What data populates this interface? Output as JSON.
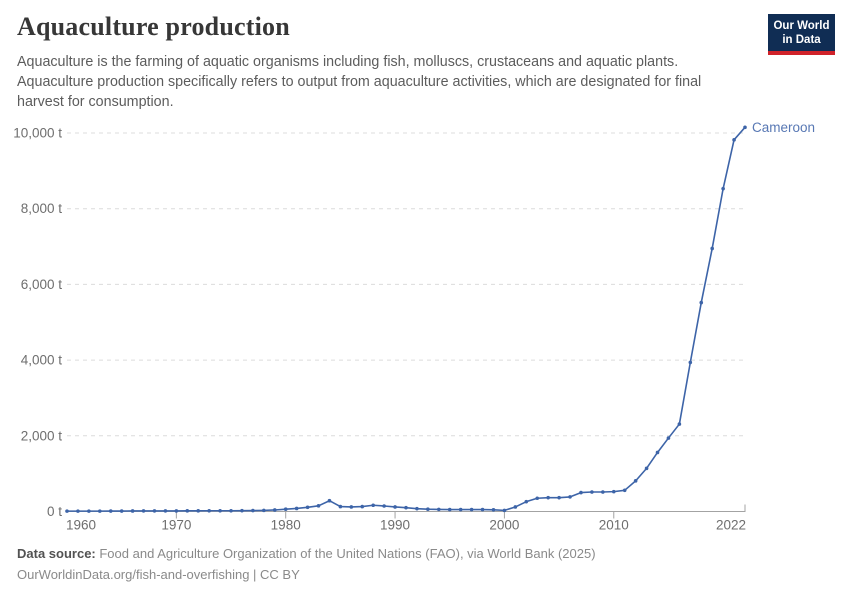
{
  "header": {
    "title": "Aquaculture production",
    "subtitle": "Aquaculture is the farming of aquatic organisms including fish, molluscs, crustaceans and aquatic plants. Aquaculture production specifically refers to output from aquaculture activities, which are designated for final harvest for consumption.",
    "logo": {
      "line1": "Our World",
      "line2": "in Data",
      "bg_color": "#102d54",
      "accent_color": "#d0222a"
    }
  },
  "chart_data": {
    "type": "line",
    "title": "Aquaculture production",
    "xlabel": "",
    "ylabel": "",
    "unit": "t",
    "xlim": [
      1960,
      2022
    ],
    "ylim": [
      0,
      10000
    ],
    "grid": "horizontal-dashed",
    "x_ticks": [
      1960,
      1970,
      1980,
      1990,
      2000,
      2010,
      2022
    ],
    "y_ticks": [
      0,
      2000,
      4000,
      6000,
      8000,
      10000
    ],
    "y_tick_labels": [
      "0 t",
      "2,000 t",
      "4,000 t",
      "6,000 t",
      "8,000 t",
      "10,000 t"
    ],
    "axis_color": "#a3a3a3",
    "gridline_color": "#dcdcdc",
    "tick_label_color": "#6e6e6e",
    "series": [
      {
        "name": "Cameroon",
        "color": "#3d64a8",
        "label_color": "#5878b4",
        "x": [
          1960,
          1961,
          1962,
          1963,
          1964,
          1965,
          1966,
          1967,
          1968,
          1969,
          1970,
          1971,
          1972,
          1973,
          1974,
          1975,
          1976,
          1977,
          1978,
          1979,
          1980,
          1981,
          1982,
          1983,
          1984,
          1985,
          1986,
          1987,
          1988,
          1989,
          1990,
          1991,
          1992,
          1993,
          1994,
          1995,
          1996,
          1997,
          1998,
          1999,
          2000,
          2001,
          2002,
          2003,
          2004,
          2005,
          2006,
          2007,
          2008,
          2009,
          2010,
          2011,
          2012,
          2013,
          2014,
          2015,
          2016,
          2017,
          2018,
          2019,
          2020,
          2021,
          2022
        ],
        "values": [
          10,
          10,
          10,
          10,
          12,
          12,
          14,
          15,
          15,
          15,
          16,
          18,
          18,
          20,
          20,
          20,
          22,
          25,
          30,
          40,
          60,
          80,
          110,
          150,
          285,
          130,
          120,
          130,
          165,
          145,
          120,
          100,
          75,
          60,
          55,
          50,
          50,
          50,
          50,
          45,
          30,
          120,
          260,
          350,
          365,
          365,
          385,
          500,
          515,
          515,
          525,
          560,
          810,
          1140,
          1560,
          1940,
          2310,
          3940,
          5520,
          6950,
          8530,
          9820,
          10150
        ]
      }
    ],
    "end_label": "Cameroon"
  },
  "footer": {
    "datasource_label": "Data source:",
    "datasource_text": " Food and Agriculture Organization of the United Nations (FAO), via World Bank (2025)",
    "link_line": "OurWorldinData.org/fish-and-overfishing | CC BY"
  }
}
